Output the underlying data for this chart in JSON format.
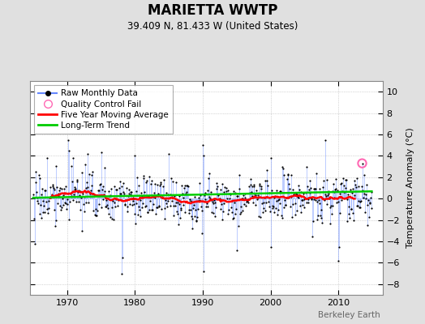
{
  "title": "MARIETTA WWTP",
  "subtitle": "39.409 N, 81.433 W (United States)",
  "ylabel": "Temperature Anomaly (°C)",
  "watermark": "Berkeley Earth",
  "ylim": [
    -9,
    11
  ],
  "yticks": [
    -8,
    -6,
    -4,
    -2,
    0,
    2,
    4,
    6,
    8,
    10
  ],
  "xlim_start": 1964.5,
  "xlim_end": 2016.5,
  "xticks": [
    1970,
    1980,
    1990,
    2000,
    2010
  ],
  "bg_color": "#e0e0e0",
  "plot_bg_color": "#ffffff",
  "raw_line_color": "#6688ff",
  "raw_dot_color": "#000000",
  "moving_avg_color": "#ff0000",
  "trend_color": "#00cc00",
  "qc_fail_color": "#ff69b4",
  "seed": 17,
  "n_years": 50,
  "start_year": 1965,
  "qc_fail_year": 2013.5,
  "qc_fail_val": 3.3,
  "trend_intercept": 0.38,
  "trend_slope": 0.012
}
